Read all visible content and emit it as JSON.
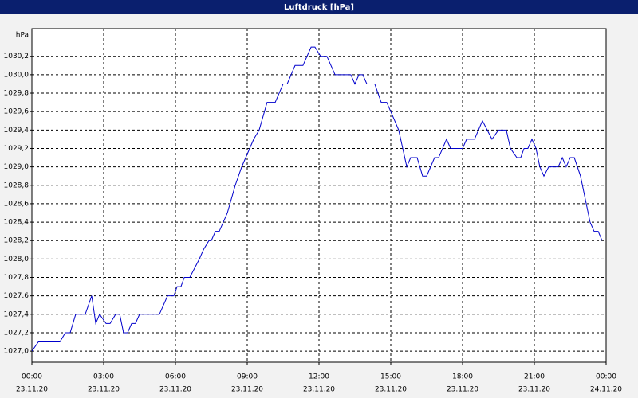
{
  "chart_data": {
    "type": "line",
    "title": "Luftdruck [hPa]",
    "y_label": "hPa",
    "x": [
      0.0,
      0.27,
      1.17,
      1.4,
      1.6,
      1.83,
      2.23,
      2.5,
      2.67,
      2.83,
      3.1,
      3.27,
      3.5,
      3.67,
      3.83,
      4.0,
      4.17,
      4.33,
      4.5,
      5.33,
      5.67,
      5.93,
      6.07,
      6.23,
      6.37,
      6.6,
      7.0,
      7.17,
      7.4,
      7.5,
      7.67,
      7.83,
      8.17,
      8.5,
      8.77,
      9.27,
      9.5,
      9.83,
      10.17,
      10.5,
      10.67,
      11.0,
      11.33,
      11.67,
      11.83,
      12.07,
      12.33,
      12.67,
      13.33,
      13.5,
      13.67,
      13.83,
      14.0,
      14.33,
      14.6,
      14.83,
      15.0,
      15.33,
      15.5,
      15.67,
      15.83,
      16.1,
      16.33,
      16.5,
      16.83,
      17.0,
      17.33,
      17.5,
      18.0,
      18.17,
      18.5,
      18.83,
      19.23,
      19.5,
      19.83,
      20.0,
      20.27,
      20.43,
      20.57,
      20.73,
      20.9,
      21.07,
      21.23,
      21.4,
      21.6,
      22.0,
      22.17,
      22.33,
      22.5,
      22.67,
      22.93,
      23.17,
      23.33,
      23.5,
      23.67,
      23.83
    ],
    "series": [
      {
        "color": "#0000cc",
        "values": [
          1027.0,
          1027.1,
          1027.1,
          1027.2,
          1027.2,
          1027.4,
          1027.4,
          1027.6,
          1027.3,
          1027.4,
          1027.3,
          1027.3,
          1027.4,
          1027.4,
          1027.2,
          1027.2,
          1027.3,
          1027.3,
          1027.4,
          1027.4,
          1027.6,
          1027.6,
          1027.7,
          1027.7,
          1027.8,
          1027.8,
          1028.0,
          1028.1,
          1028.2,
          1028.2,
          1028.3,
          1028.3,
          1028.5,
          1028.8,
          1029.0,
          1029.3,
          1029.4,
          1029.7,
          1029.7,
          1029.9,
          1029.9,
          1030.1,
          1030.1,
          1030.3,
          1030.3,
          1030.2,
          1030.2,
          1030.0,
          1030.0,
          1029.9,
          1030.0,
          1030.0,
          1029.9,
          1029.9,
          1029.7,
          1029.7,
          1029.6,
          1029.4,
          1029.2,
          1029.0,
          1029.1,
          1029.1,
          1028.9,
          1028.9,
          1029.1,
          1029.1,
          1029.3,
          1029.2,
          1029.2,
          1029.3,
          1029.3,
          1029.5,
          1029.3,
          1029.4,
          1029.4,
          1029.2,
          1029.1,
          1029.1,
          1029.2,
          1029.2,
          1029.3,
          1029.2,
          1029.0,
          1028.9,
          1029.0,
          1029.0,
          1029.1,
          1029.0,
          1029.1,
          1029.1,
          1028.9,
          1028.6,
          1028.4,
          1028.3,
          1028.3,
          1028.2
        ]
      }
    ],
    "xlim": [
      0,
      24
    ],
    "xticks": [
      {
        "value": 0,
        "label": "00:00",
        "date": "23.11.20"
      },
      {
        "value": 3,
        "label": "03:00",
        "date": "23.11.20"
      },
      {
        "value": 6,
        "label": "06:00",
        "date": "23.11.20"
      },
      {
        "value": 9,
        "label": "09:00",
        "date": "23.11.20"
      },
      {
        "value": 12,
        "label": "12:00",
        "date": "23.11.20"
      },
      {
        "value": 15,
        "label": "15:00",
        "date": "23.11.20"
      },
      {
        "value": 18,
        "label": "18:00",
        "date": "23.11.20"
      },
      {
        "value": 21,
        "label": "21:00",
        "date": "23.11.20"
      },
      {
        "value": 24,
        "label": "00:00",
        "date": "24.11.20"
      }
    ],
    "ylim": [
      1026.88,
      1030.5
    ],
    "yticks": [
      {
        "value": 1027.0,
        "label": "1027,0"
      },
      {
        "value": 1027.2,
        "label": "1027,2"
      },
      {
        "value": 1027.4,
        "label": "1027,4"
      },
      {
        "value": 1027.6,
        "label": "1027,6"
      },
      {
        "value": 1027.8,
        "label": "1027,8"
      },
      {
        "value": 1028.0,
        "label": "1028,0"
      },
      {
        "value": 1028.2,
        "label": "1028,2"
      },
      {
        "value": 1028.4,
        "label": "1028,4"
      },
      {
        "value": 1028.6,
        "label": "1028,6"
      },
      {
        "value": 1028.8,
        "label": "1028,8"
      },
      {
        "value": 1029.0,
        "label": "1029,0"
      },
      {
        "value": 1029.2,
        "label": "1029,2"
      },
      {
        "value": 1029.4,
        "label": "1029,4"
      },
      {
        "value": 1029.6,
        "label": "1029,6"
      },
      {
        "value": 1029.8,
        "label": "1029,8"
      },
      {
        "value": 1030.0,
        "label": "1030,0"
      },
      {
        "value": 1030.2,
        "label": "1030,2"
      }
    ],
    "grid": true
  }
}
